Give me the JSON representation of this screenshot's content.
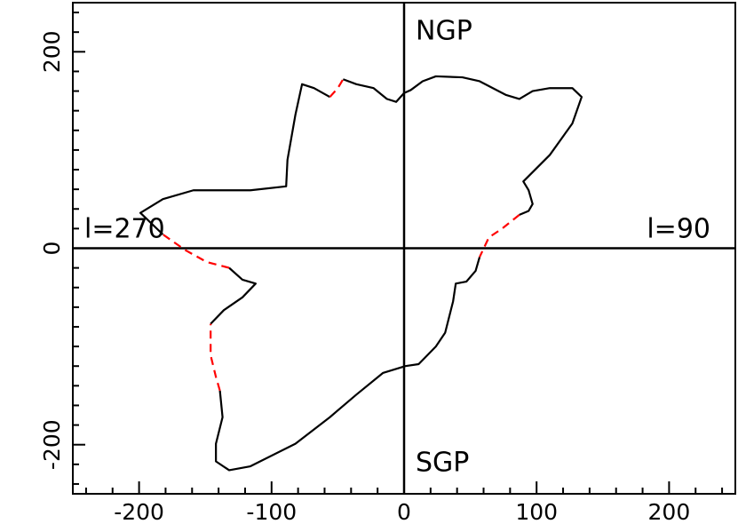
{
  "chart_data": {
    "type": "line",
    "annotations": [
      "NGP",
      "SGP",
      "l=270",
      "l=90"
    ],
    "xlim": [
      -250,
      250
    ],
    "ylim": [
      -250,
      250
    ],
    "xticks": [
      -200,
      -100,
      0,
      100,
      200
    ],
    "yticks": [
      -200,
      0,
      200
    ],
    "xminorticks": [
      -240,
      -220,
      -180,
      -160,
      -140,
      -120,
      -80,
      -60,
      -40,
      -20,
      20,
      40,
      60,
      80,
      120,
      140,
      160,
      180,
      220,
      240
    ],
    "yminorticks": [
      -240,
      -220,
      -180,
      -160,
      -140,
      -120,
      -100,
      -80,
      -60,
      -40,
      -20,
      20,
      40,
      60,
      80,
      100,
      120,
      140,
      160,
      180,
      220,
      240
    ],
    "x": [
      0,
      5,
      14,
      24,
      44,
      57,
      67,
      77,
      87,
      97,
      110,
      127,
      134,
      127,
      110,
      90,
      94,
      97,
      94,
      87,
      74,
      64,
      57,
      54,
      47,
      39,
      37,
      31,
      24,
      11,
      1,
      -16,
      -36,
      -56,
      -82,
      -116,
      -132,
      -142,
      -142,
      -137,
      -139,
      -142,
      -146,
      -146,
      -136,
      -122,
      -112,
      -122,
      -132,
      -149,
      -165,
      -182,
      -199,
      -182,
      -159,
      -116,
      -89,
      -88,
      -82,
      -77,
      -68,
      -56,
      -50,
      -46,
      -36,
      -23,
      -13,
      -6,
      0
    ],
    "series": [
      {
        "color": "#000000",
        "dashed": false,
        "values": [
          158,
          161,
          170,
          175,
          174,
          170,
          163,
          156,
          152,
          160,
          163,
          163,
          154,
          127,
          95,
          68,
          59,
          45,
          38,
          34,
          null,
          null,
          -9,
          -23,
          -34,
          -36,
          -54,
          -86,
          -100,
          -118,
          -120,
          -127,
          -149,
          -172,
          -199,
          -222,
          -226,
          -217,
          -199,
          -172,
          -145,
          null,
          null,
          -77,
          -63,
          -50,
          -36,
          -32,
          -20,
          null,
          null,
          14,
          36,
          50,
          59,
          59,
          63,
          90,
          136,
          167,
          163,
          154,
          null,
          172,
          167,
          163,
          152,
          149,
          158
        ]
      },
      {
        "color": "#ff0000",
        "dashed": true,
        "values": [
          null,
          null,
          null,
          null,
          null,
          null,
          null,
          null,
          null,
          null,
          null,
          null,
          null,
          null,
          null,
          null,
          null,
          null,
          null,
          34,
          20,
          11,
          -9,
          null,
          null,
          null,
          null,
          null,
          null,
          null,
          null,
          null,
          null,
          null,
          null,
          null,
          null,
          null,
          null,
          null,
          -145,
          -131,
          -109,
          -77,
          null,
          null,
          null,
          null,
          -20,
          -14,
          -2,
          14,
          null,
          null,
          null,
          null,
          null,
          null,
          null,
          null,
          null,
          154,
          163,
          172,
          null,
          null,
          null,
          null,
          null
        ]
      }
    ]
  }
}
